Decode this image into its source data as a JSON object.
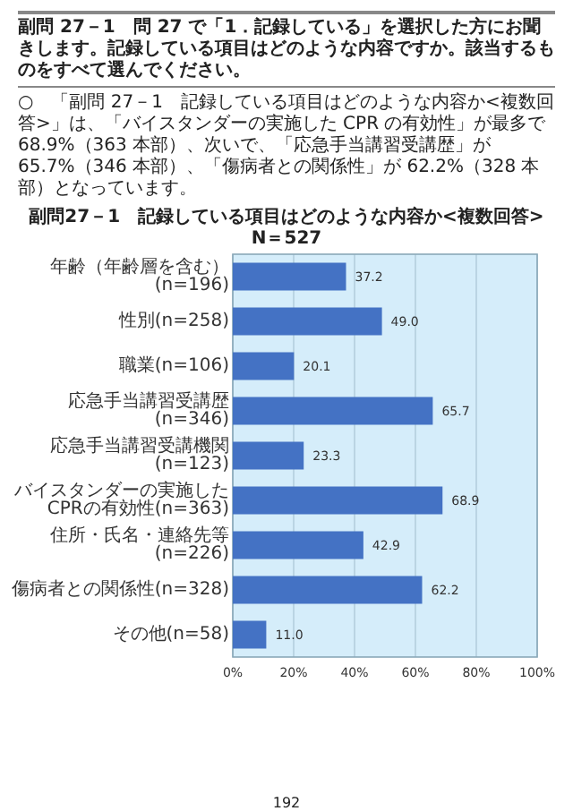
{
  "chart_data": {
    "type": "bar",
    "orientation": "horizontal",
    "title": "副問27－1　記録している項目はどのような内容か<複数回答>",
    "subtitle": "N＝527",
    "annotations": [
      "副問 27－1　問 27 で「1．記録している」を選択した方にお聞きします。記録している項目はどのような内容ですか。該当するものをすべて選んでください。",
      "○　「副問 27－1　記録している項目はどのような内容か<複数回答>」は、「バイスタンダーの実施した CPR の有効性」が最多で 68.9%（363 本部）、次いで、「応急手当講習受講歴」が 65.7%（346 本部）、「傷病者との関係性」が 62.2%（328 本部）となっています。",
      "192"
    ],
    "categories": [
      "年齢（年齢層を含む）(n=196)",
      "性別(n=258)",
      "職業(n=106)",
      "応急手当講習受講歴(n=346)",
      "応急手当講習受講機関(n=123)",
      "バイスタンダーの実施したCPRの有効性(n=363)",
      "住所・氏名・連絡先等(n=226)",
      "傷病者との関係性(n=328)",
      "その他(n=58)"
    ],
    "values": [
      37.2,
      49.0,
      20.1,
      65.7,
      23.3,
      68.9,
      42.9,
      62.2,
      11.0
    ],
    "value_labels": [
      "37.2",
      "49.0",
      "20.1",
      "65.7",
      "23.3",
      "68.9",
      "42.9",
      "62.2",
      "11.0"
    ],
    "color": "#4472c4",
    "xlim": [
      0,
      100
    ],
    "xticks": [
      {
        "value": 0,
        "label": "0%"
      },
      {
        "value": 20,
        "label": "20%"
      },
      {
        "value": 40,
        "label": "40%"
      },
      {
        "value": 60,
        "label": "60%"
      },
      {
        "value": 80,
        "label": "80%"
      },
      {
        "value": 100,
        "label": "100%"
      }
    ],
    "grid": "x"
  }
}
